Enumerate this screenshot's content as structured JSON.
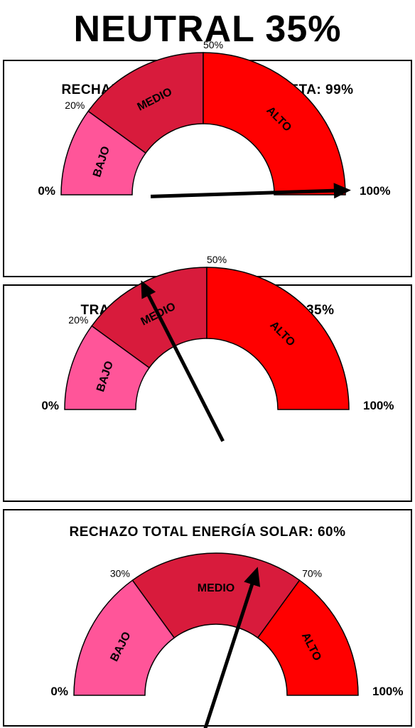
{
  "page": {
    "title": "NEUTRAL 35%"
  },
  "chart_data": [
    {
      "type": "gauge",
      "title": "RECHAZO DE RAYOS ULTRAVIOLETA: 99%",
      "value": 99,
      "range": [
        0,
        100
      ],
      "min_label": "0%",
      "max_label": "100%",
      "bands": [
        {
          "label": "BAJO",
          "from": 0,
          "to": 20,
          "color": "#FF5599"
        },
        {
          "label": "MEDIO",
          "from": 20,
          "to": 50,
          "color": "#D81B3C"
        },
        {
          "label": "ALTO",
          "from": 50,
          "to": 100,
          "color": "#FF0000"
        }
      ],
      "threshold_labels": [
        "20%",
        "50%"
      ]
    },
    {
      "type": "gauge",
      "title": "TRANSMISIÓN DE LUZ VISIBLE : 35%",
      "value": 35,
      "range": [
        0,
        100
      ],
      "min_label": "0%",
      "max_label": "100%",
      "bands": [
        {
          "label": "BAJO",
          "from": 0,
          "to": 20,
          "color": "#FF5599"
        },
        {
          "label": "MEDIO",
          "from": 20,
          "to": 50,
          "color": "#D81B3C"
        },
        {
          "label": "ALTO",
          "from": 50,
          "to": 100,
          "color": "#FF0000"
        }
      ],
      "threshold_labels": [
        "20%",
        "50%"
      ]
    },
    {
      "type": "gauge",
      "title": "RECHAZO TOTAL ENERGÍA SOLAR: 60%",
      "value": 60,
      "range": [
        0,
        100
      ],
      "min_label": "0%",
      "max_label": "100%",
      "bands": [
        {
          "label": "BAJO",
          "from": 0,
          "to": 30,
          "color": "#FF5599"
        },
        {
          "label": "MEDIO",
          "from": 30,
          "to": 70,
          "color": "#D81B3C"
        },
        {
          "label": "ALTO",
          "from": 70,
          "to": 100,
          "color": "#FF0000"
        }
      ],
      "threshold_labels": [
        "30%",
        "70%"
      ]
    }
  ]
}
